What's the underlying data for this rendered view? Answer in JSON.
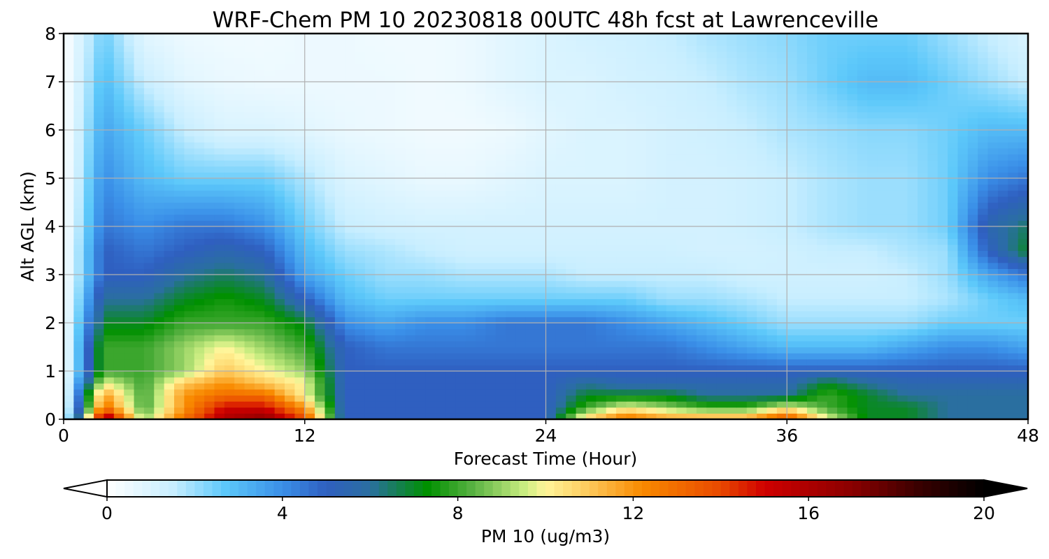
{
  "chart_data": {
    "type": "heatmap",
    "title": "WRF-Chem PM 10  20230818 00UTC 48h fcst at Lawrenceville",
    "xlabel": "Forecast Time (Hour)",
    "ylabel": "Alt AGL (km)",
    "xlim": [
      0,
      48
    ],
    "ylim": [
      0,
      8
    ],
    "xticks": [
      0,
      12,
      24,
      36,
      48
    ],
    "yticks": [
      0,
      1,
      2,
      3,
      4,
      5,
      6,
      7,
      8
    ],
    "grid": true,
    "x_hours": [
      0,
      2,
      4,
      6,
      8,
      10,
      12,
      14,
      16,
      18,
      20,
      22,
      24,
      26,
      28,
      30,
      32,
      34,
      36,
      38,
      40,
      42,
      44,
      46,
      48
    ],
    "y_km": [
      0,
      0.25,
      0.5,
      0.75,
      1,
      1.5,
      2,
      2.5,
      3,
      3.5,
      4,
      5,
      6,
      7,
      8
    ],
    "values": [
      [
        0,
        17,
        9,
        13,
        16,
        17,
        14,
        5,
        5,
        5,
        5,
        5,
        5,
        11,
        13,
        12,
        12,
        12,
        14,
        10,
        7,
        7,
        6,
        6,
        6
      ],
      [
        0,
        13,
        8,
        12,
        15,
        15,
        12,
        5,
        5,
        5,
        5,
        5,
        5,
        8,
        10,
        9,
        8,
        8,
        10,
        8,
        7,
        7,
        6,
        6,
        6
      ],
      [
        0,
        12,
        8,
        12,
        13,
        13,
        10,
        5,
        5,
        5,
        5,
        5,
        5,
        7,
        7,
        7,
        6,
        6,
        6,
        8,
        7,
        6,
        6,
        6,
        6
      ],
      [
        0,
        10,
        8,
        11,
        12,
        11,
        10,
        5,
        5,
        5,
        5,
        5,
        5,
        6,
        5.5,
        5.5,
        5.5,
        5.5,
        5.5,
        7,
        6,
        5.5,
        5.5,
        5.5,
        5.5
      ],
      [
        0,
        8,
        8,
        9,
        11,
        10,
        9,
        5,
        5,
        5,
        5,
        5,
        5,
        5,
        5,
        5,
        5,
        5,
        5,
        5,
        5,
        5,
        5,
        5,
        5
      ],
      [
        0,
        8,
        8,
        9,
        10,
        9,
        8,
        5,
        4.5,
        4.5,
        4.5,
        4.5,
        4.5,
        4.5,
        4.5,
        4.5,
        4,
        3.5,
        3,
        3,
        3,
        3.5,
        4,
        4,
        3.5
      ],
      [
        0,
        7,
        7,
        8,
        8,
        8,
        7,
        4,
        3.5,
        4,
        4,
        4.5,
        4.5,
        4.5,
        4,
        3.5,
        3,
        2.5,
        2,
        2,
        2,
        2,
        2.5,
        2.5,
        2.5
      ],
      [
        0,
        6,
        6,
        7,
        7.5,
        7,
        5,
        3,
        2.5,
        2.5,
        2.5,
        2.5,
        2.5,
        2.5,
        2.5,
        2,
        2,
        1.8,
        1.5,
        1.5,
        1.5,
        1.5,
        1.8,
        2.5,
        3
      ],
      [
        0,
        5,
        5,
        6,
        6.5,
        6,
        3.5,
        2.5,
        2,
        2,
        1.8,
        1.8,
        1.8,
        1.5,
        1.5,
        1.5,
        1.5,
        1.3,
        1.3,
        1.3,
        1.3,
        1.5,
        2,
        3.5,
        4.5
      ],
      [
        0,
        5,
        4.5,
        5,
        5.5,
        5,
        3,
        2,
        1.8,
        1.5,
        1.3,
        1.3,
        1.3,
        1.3,
        1.3,
        1.3,
        1.2,
        1.2,
        1.3,
        1.5,
        1.5,
        1.8,
        2,
        5,
        7
      ],
      [
        0,
        4.5,
        4,
        4.5,
        4.5,
        4,
        2.5,
        1.5,
        1.3,
        1.2,
        1.2,
        1.2,
        1.2,
        1.2,
        1.2,
        1.2,
        1.2,
        1.3,
        1.5,
        1.8,
        2,
        2,
        2.5,
        5.5,
        6.5
      ],
      [
        0,
        4,
        3,
        2.5,
        2.5,
        2.5,
        1.8,
        1,
        0.8,
        0.6,
        0.6,
        0.8,
        1,
        1,
        1,
        1.2,
        1.2,
        1.3,
        1.5,
        1.8,
        2,
        2,
        2.5,
        4,
        4.5
      ],
      [
        0,
        3.5,
        2.5,
        1.5,
        1,
        1,
        0.8,
        0.6,
        0.5,
        0.4,
        0.4,
        0.5,
        0.8,
        1,
        1,
        1.2,
        1.3,
        1.5,
        1.8,
        2,
        2.2,
        2.2,
        2.5,
        3,
        3
      ],
      [
        0,
        3,
        1.5,
        0.8,
        0.6,
        0.5,
        0.5,
        0.5,
        0.5,
        0.4,
        0.5,
        0.8,
        1,
        1,
        1.2,
        1.3,
        1.5,
        1.8,
        2,
        2.5,
        3,
        3,
        2.5,
        2,
        1.5
      ],
      [
        0,
        2.5,
        0.8,
        0.5,
        0.4,
        0.4,
        0.5,
        0.5,
        0.4,
        0.4,
        0.5,
        0.8,
        1,
        1.2,
        1.3,
        1.5,
        1.8,
        2,
        2.2,
        2.5,
        2.5,
        2.5,
        2,
        1.5,
        1
      ]
    ],
    "colorbar": {
      "label": "PM 10  (ug/m3)",
      "min": 0,
      "max": 20,
      "ticks": [
        0,
        4,
        8,
        12,
        16,
        20
      ],
      "extend": "both",
      "stops": [
        {
          "v": 0,
          "c": "#ffffff"
        },
        {
          "v": 1.5,
          "c": "#c8eeff"
        },
        {
          "v": 2.7,
          "c": "#5cc8fa"
        },
        {
          "v": 4,
          "c": "#3a8fe8"
        },
        {
          "v": 5,
          "c": "#2f5fc0"
        },
        {
          "v": 6,
          "c": "#2a6fa0"
        },
        {
          "v": 7.3,
          "c": "#009000"
        },
        {
          "v": 8.3,
          "c": "#55b040"
        },
        {
          "v": 9.5,
          "c": "#c8ec80"
        },
        {
          "v": 10,
          "c": "#fff59a"
        },
        {
          "v": 11,
          "c": "#fdc85a"
        },
        {
          "v": 12.2,
          "c": "#f98a00"
        },
        {
          "v": 14,
          "c": "#e84800"
        },
        {
          "v": 15,
          "c": "#cf0000"
        },
        {
          "v": 17,
          "c": "#8a0000"
        },
        {
          "v": 18.5,
          "c": "#3a0000"
        },
        {
          "v": 20,
          "c": "#000000"
        }
      ]
    }
  }
}
